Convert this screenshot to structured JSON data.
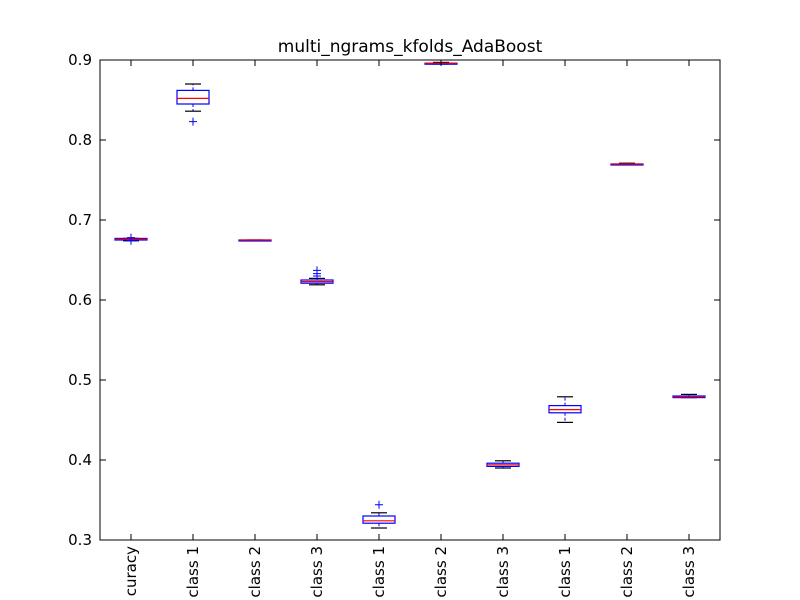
{
  "chart_data": {
    "type": "box",
    "title": "multi_ngrams_kfolds_AdaBoost",
    "xlabel": "",
    "ylabel": "",
    "ylim": [
      0.3,
      0.9
    ],
    "yticks": [
      "0.3",
      "0.4",
      "0.5",
      "0.6",
      "0.7",
      "0.8",
      "0.9"
    ],
    "categories": [
      "curacy",
      "class 1",
      "class 2",
      "class 3",
      "class 1",
      "class 2",
      "class 3",
      "class 1",
      "class 2",
      "class 3"
    ],
    "boxes": [
      {
        "whisker_low": 0.674,
        "q1": 0.675,
        "median": 0.676,
        "q3": 0.677,
        "whisker_high": 0.677,
        "outliers": [
          0.678,
          0.674
        ]
      },
      {
        "whisker_low": 0.836,
        "q1": 0.845,
        "median": 0.852,
        "q3": 0.862,
        "whisker_high": 0.87,
        "outliers": [
          0.823
        ]
      },
      {
        "whisker_low": 0.674,
        "q1": 0.674,
        "median": 0.675,
        "q3": 0.675,
        "whisker_high": 0.675,
        "outliers": []
      },
      {
        "whisker_low": 0.619,
        "q1": 0.621,
        "median": 0.623,
        "q3": 0.625,
        "whisker_high": 0.627,
        "outliers": [
          0.63,
          0.633,
          0.637
        ]
      },
      {
        "whisker_low": 0.315,
        "q1": 0.321,
        "median": 0.324,
        "q3": 0.33,
        "whisker_high": 0.334,
        "outliers": [
          0.344
        ]
      },
      {
        "whisker_low": 0.895,
        "q1": 0.895,
        "median": 0.896,
        "q3": 0.896,
        "whisker_high": 0.897,
        "outliers": []
      },
      {
        "whisker_low": 0.39,
        "q1": 0.392,
        "median": 0.394,
        "q3": 0.396,
        "whisker_high": 0.399,
        "outliers": []
      },
      {
        "whisker_low": 0.447,
        "q1": 0.459,
        "median": 0.463,
        "q3": 0.468,
        "whisker_high": 0.479,
        "outliers": []
      },
      {
        "whisker_low": 0.769,
        "q1": 0.769,
        "median": 0.77,
        "q3": 0.77,
        "whisker_high": 0.771,
        "outliers": []
      },
      {
        "whisker_low": 0.478,
        "q1": 0.478,
        "median": 0.479,
        "q3": 0.48,
        "whisker_high": 0.482,
        "outliers": []
      }
    ],
    "grid": false,
    "colors": {
      "box": "#0000ff",
      "median": "#ff0000",
      "whisker": "#000000",
      "outlier": "#0000ff",
      "axes": "#000000"
    }
  }
}
